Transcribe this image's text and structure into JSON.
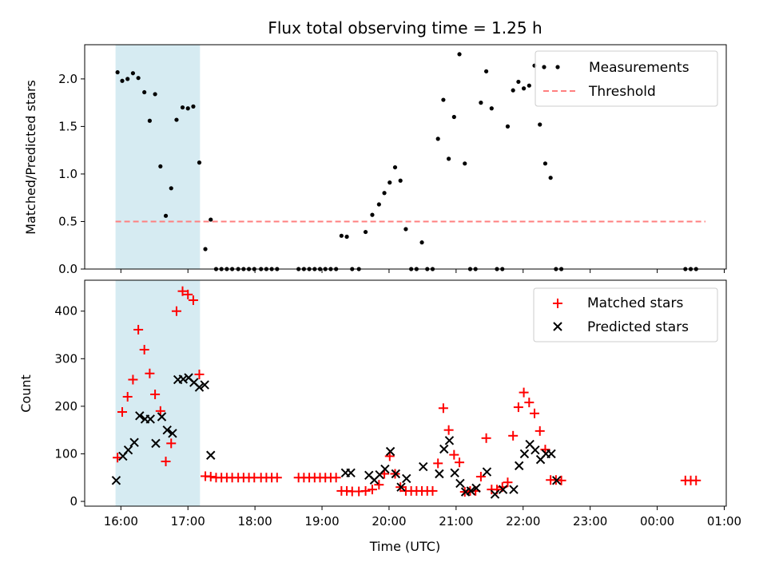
{
  "chart_data": {
    "type": "scatter",
    "title": "Flux total observing time = 1.25 h",
    "xlabel": "Time (UTC)",
    "x_unit": "hours since 16:00 UTC",
    "xlim": [
      -0.54,
      9.03
    ],
    "x_ticks": [
      {
        "x": 0,
        "label": "16:00"
      },
      {
        "x": 1,
        "label": "17:00"
      },
      {
        "x": 2,
        "label": "18:00"
      },
      {
        "x": 3,
        "label": "19:00"
      },
      {
        "x": 4,
        "label": "20:00"
      },
      {
        "x": 5,
        "label": "21:00"
      },
      {
        "x": 6,
        "label": "22:00"
      },
      {
        "x": 7,
        "label": "23:00"
      },
      {
        "x": 8,
        "label": "00:00"
      },
      {
        "x": 9,
        "label": "01:00"
      }
    ],
    "highlight_span": {
      "x0": -0.08,
      "x1": 1.18,
      "color": "#add8e6"
    },
    "colors": {
      "measurements": "#000000",
      "threshold": "#ff7f7f",
      "matched": "#ff0000",
      "predicted": "#000000",
      "span": "#add8e6"
    },
    "panels": [
      {
        "name": "ratio",
        "ylabel": "Matched/Predicted stars",
        "ylim": [
          0,
          2.36
        ],
        "y_ticks": [
          {
            "y": 0,
            "label": "0.0"
          },
          {
            "y": 0.5,
            "label": "0.5"
          },
          {
            "y": 1.0,
            "label": "1.0"
          },
          {
            "y": 1.5,
            "label": "1.5"
          },
          {
            "y": 2.0,
            "label": "2.0"
          }
        ],
        "legend": {
          "position": "upper right",
          "entries": [
            "Measurements",
            "Threshold"
          ]
        },
        "threshold": {
          "label": "Threshold",
          "y": 0.5,
          "x_range": [
            -0.08,
            8.72
          ]
        },
        "series": [
          {
            "name": "Measurements",
            "marker": "dot",
            "x": [
              -0.05,
              0.02,
              0.1,
              0.18,
              0.26,
              0.35,
              0.43,
              0.51,
              0.59,
              0.67,
              0.75,
              0.83,
              0.92,
              1.0,
              1.08,
              1.17,
              1.26,
              1.34,
              1.42,
              1.5,
              1.58,
              1.66,
              1.75,
              1.83,
              1.91,
              1.99,
              2.09,
              2.17,
              2.25,
              2.33,
              2.65,
              2.73,
              2.81,
              2.89,
              2.97,
              3.05,
              3.13,
              3.21,
              3.29,
              3.37,
              3.45,
              3.55,
              3.65,
              3.75,
              3.85,
              3.93,
              4.01,
              4.09,
              4.17,
              4.25,
              4.33,
              4.41,
              4.49,
              4.57,
              4.65,
              4.73,
              4.81,
              4.89,
              4.97,
              5.05,
              5.13,
              5.21,
              5.29,
              5.37,
              5.45,
              5.53,
              5.61,
              5.69,
              5.77,
              5.85,
              5.93,
              6.01,
              6.09,
              6.17,
              6.25,
              6.33,
              6.41,
              6.49,
              6.57,
              8.42,
              8.5,
              8.58
            ],
            "y": [
              2.07,
              1.98,
              2.0,
              2.06,
              2.01,
              1.86,
              1.56,
              1.84,
              1.08,
              0.56,
              0.85,
              1.57,
              1.7,
              1.69,
              1.71,
              1.12,
              0.21,
              0.52,
              0.0,
              0.0,
              0.0,
              0.0,
              0.0,
              0.0,
              0.0,
              0.0,
              0.0,
              0.0,
              0.0,
              0.0,
              0.0,
              0.0,
              0.0,
              0.0,
              0.0,
              0.0,
              0.0,
              0.0,
              0.35,
              0.34,
              0.0,
              0.0,
              0.39,
              0.57,
              0.68,
              0.8,
              0.91,
              1.07,
              0.93,
              0.42,
              0.0,
              0.0,
              0.28,
              0.0,
              0.0,
              1.37,
              1.78,
              1.16,
              1.6,
              2.26,
              1.11,
              0.0,
              0.0,
              1.75,
              2.08,
              1.69,
              0.0,
              0.0,
              1.5,
              1.88,
              1.97,
              1.9,
              1.93,
              2.14,
              1.52,
              1.11,
              0.96,
              0.0,
              0.0,
              0.0,
              0.0,
              0.0
            ]
          }
        ]
      },
      {
        "name": "count",
        "ylabel": "Count",
        "ylim": [
          -10,
          465
        ],
        "y_ticks": [
          {
            "y": 0,
            "label": "0"
          },
          {
            "y": 100,
            "label": "100"
          },
          {
            "y": 200,
            "label": "200"
          },
          {
            "y": 300,
            "label": "300"
          },
          {
            "y": 400,
            "label": "400"
          }
        ],
        "legend": {
          "position": "upper right",
          "entries": [
            "Matched stars",
            "Predicted stars"
          ]
        },
        "series": [
          {
            "name": "Matched stars",
            "marker": "plus",
            "x": [
              -0.05,
              0.02,
              0.1,
              0.18,
              0.26,
              0.35,
              0.43,
              0.51,
              0.59,
              0.67,
              0.75,
              0.83,
              0.92,
              1.0,
              1.08,
              1.17,
              1.26,
              1.34,
              1.42,
              1.5,
              1.58,
              1.66,
              1.75,
              1.83,
              1.91,
              1.99,
              2.09,
              2.17,
              2.25,
              2.33,
              2.65,
              2.73,
              2.81,
              2.89,
              2.97,
              3.05,
              3.13,
              3.21,
              3.29,
              3.37,
              3.45,
              3.55,
              3.65,
              3.75,
              3.85,
              3.93,
              4.01,
              4.09,
              4.17,
              4.25,
              4.33,
              4.41,
              4.49,
              4.57,
              4.65,
              4.73,
              4.81,
              4.89,
              4.97,
              5.05,
              5.13,
              5.21,
              5.29,
              5.37,
              5.45,
              5.53,
              5.61,
              5.69,
              5.77,
              5.85,
              5.93,
              6.01,
              6.09,
              6.17,
              6.25,
              6.33,
              6.41,
              6.49,
              6.57,
              8.42,
              8.5,
              8.58
            ],
            "y": [
              92,
              188,
              220,
              256,
              361,
              319,
              269,
              225,
              190,
              84,
              122,
              400,
              442,
              435,
              423,
              267,
              53,
              52,
              50,
              50,
              50,
              50,
              50,
              50,
              50,
              50,
              50,
              50,
              50,
              50,
              50,
              50,
              50,
              50,
              50,
              50,
              50,
              50,
              22,
              22,
              21,
              21,
              22,
              25,
              35,
              58,
              95,
              58,
              30,
              22,
              22,
              22,
              22,
              22,
              22,
              80,
              196,
              150,
              98,
              82,
              20,
              22,
              22,
              52,
              133,
              25,
              25,
              30,
              40,
              138,
              198,
              229,
              208,
              185,
              148,
              109,
              45,
              45,
              44,
              44,
              44,
              44
            ]
          },
          {
            "name": "Predicted stars",
            "marker": "cross",
            "x": [
              -0.07,
              0.03,
              0.11,
              0.2,
              0.28,
              0.36,
              0.44,
              0.52,
              0.61,
              0.69,
              0.77,
              0.85,
              0.93,
              1.01,
              1.09,
              1.17,
              1.25,
              1.34,
              3.35,
              3.43,
              3.7,
              3.78,
              3.86,
              3.94,
              4.02,
              4.1,
              4.18,
              4.26,
              4.51,
              4.75,
              4.82,
              4.9,
              4.98,
              5.06,
              5.14,
              5.22,
              5.3,
              5.46,
              5.58,
              5.7,
              5.86,
              5.94,
              6.02,
              6.1,
              6.18,
              6.26,
              6.34,
              6.42,
              6.5
            ],
            "y": [
              44,
              95,
              108,
              124,
              180,
              173,
              173,
              122,
              178,
              150,
              143,
              256,
              257,
              260,
              250,
              240,
              245,
              97,
              60,
              60,
              55,
              45,
              56,
              68,
              105,
              58,
              30,
              48,
              73,
              58,
              110,
              128,
              60,
              38,
              20,
              22,
              28,
              62,
              15,
              25,
              25,
              75,
              100,
              120,
              108,
              88,
              100,
              100,
              44
            ]
          }
        ]
      }
    ]
  }
}
